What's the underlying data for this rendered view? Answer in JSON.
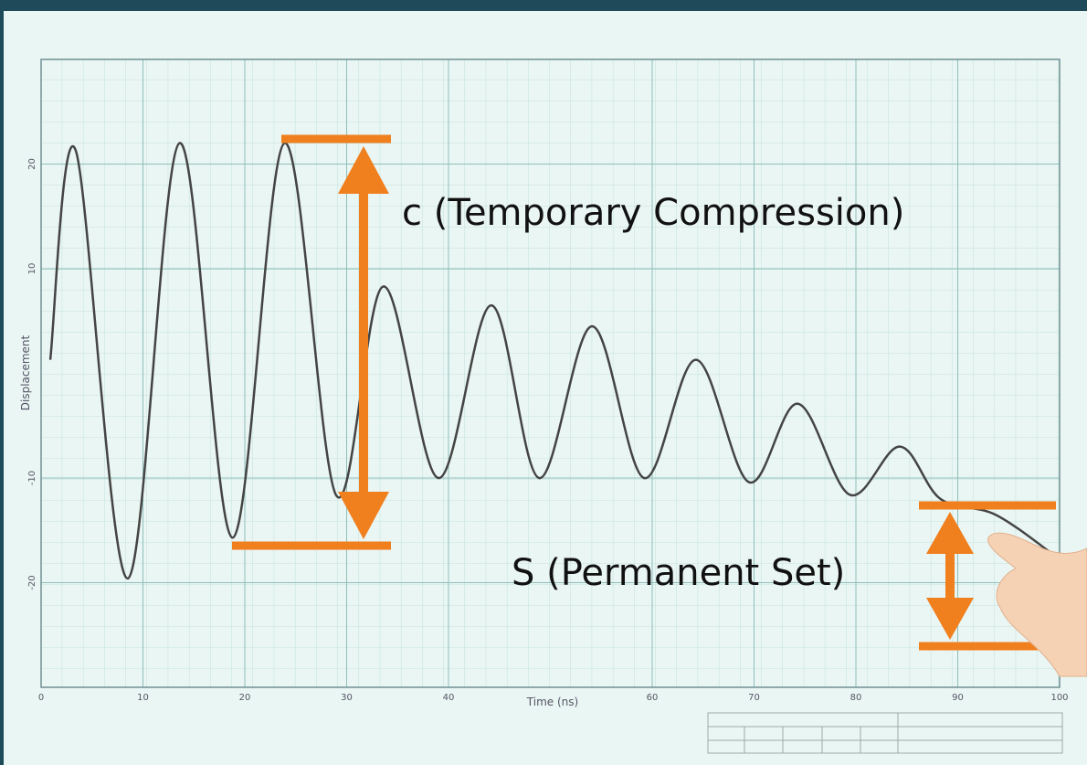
{
  "chart_data": {
    "type": "line",
    "x_label": "Time (ns)",
    "y_label": "Displacement",
    "xlim": [
      0,
      100
    ],
    "ylim": [
      -30,
      30
    ],
    "xticks": [
      0,
      10,
      20,
      30,
      40,
      60,
      70,
      80,
      90,
      100
    ],
    "yticks": [
      -20,
      -10,
      10,
      20
    ],
    "grid": true,
    "annotations": [
      "c (Temporary Compression)",
      "S (Permanent Set)"
    ],
    "series": [
      {
        "color": "#444444",
        "x": [
          0.9,
          3.4,
          8.5,
          13.6,
          18.8,
          23.9,
          29,
          33.6,
          39,
          44.2,
          48.9,
          54.1,
          59.2,
          64.3,
          69.5,
          74.3,
          79.4,
          84.3,
          88.3,
          93.7,
          99.5
        ],
        "values": [
          1.3,
          21.3,
          -19.6,
          22,
          -15.7,
          22,
          -11.7,
          8.3,
          -10,
          6.5,
          -10,
          4.5,
          -10,
          1.3,
          -10.4,
          -2.9,
          -11.6,
          -7,
          -12,
          -13.5,
          -17.4
        ]
      }
    ]
  }
}
